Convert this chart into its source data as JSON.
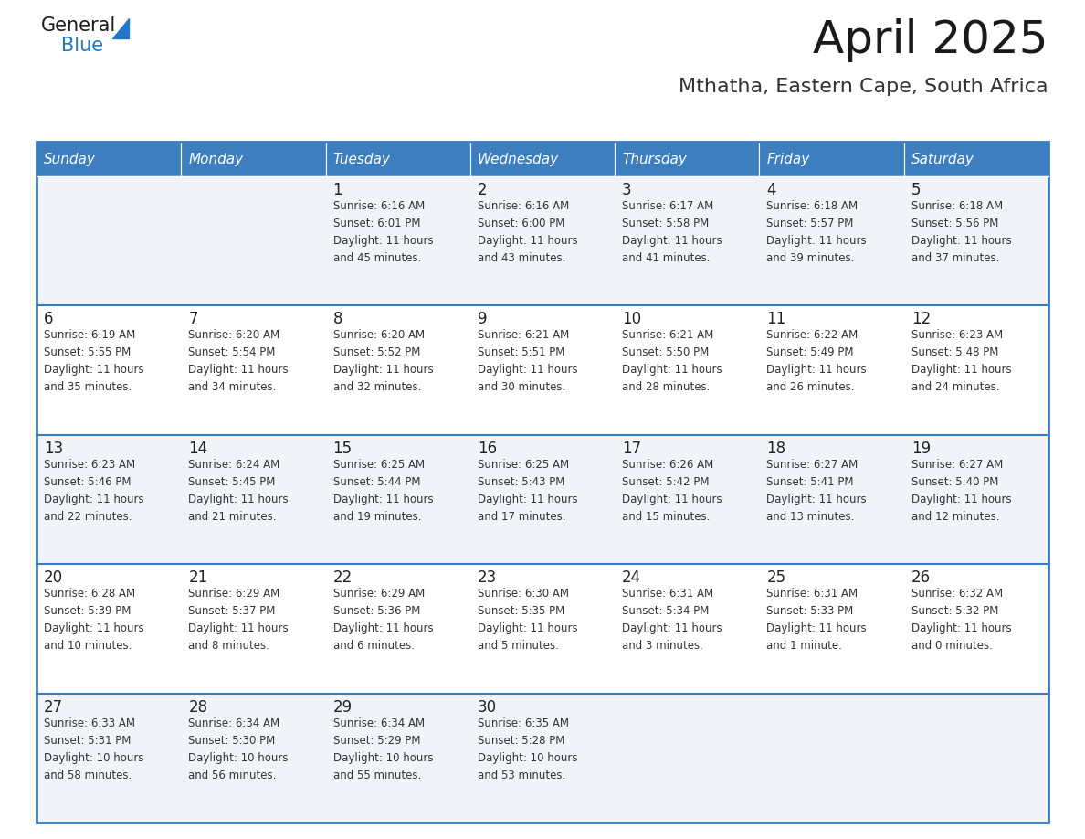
{
  "title": "April 2025",
  "subtitle": "Mthatha, Eastern Cape, South Africa",
  "days_of_week": [
    "Sunday",
    "Monday",
    "Tuesday",
    "Wednesday",
    "Thursday",
    "Friday",
    "Saturday"
  ],
  "header_bg": "#3d7ebf",
  "header_text": "#ffffff",
  "row_bg_even": "#f0f4f8",
  "row_bg_odd": "#ffffff",
  "border_color": "#3a7abf",
  "title_color": "#1a1a1a",
  "subtitle_color": "#333333",
  "cell_text_color": "#333333",
  "day_num_color": "#222222",
  "calendar": [
    [
      {
        "day": null,
        "sunrise": null,
        "sunset": null,
        "daylight": null
      },
      {
        "day": null,
        "sunrise": null,
        "sunset": null,
        "daylight": null
      },
      {
        "day": 1,
        "sunrise": "Sunrise: 6:16 AM",
        "sunset": "Sunset: 6:01 PM",
        "daylight": "Daylight: 11 hours\nand 45 minutes."
      },
      {
        "day": 2,
        "sunrise": "Sunrise: 6:16 AM",
        "sunset": "Sunset: 6:00 PM",
        "daylight": "Daylight: 11 hours\nand 43 minutes."
      },
      {
        "day": 3,
        "sunrise": "Sunrise: 6:17 AM",
        "sunset": "Sunset: 5:58 PM",
        "daylight": "Daylight: 11 hours\nand 41 minutes."
      },
      {
        "day": 4,
        "sunrise": "Sunrise: 6:18 AM",
        "sunset": "Sunset: 5:57 PM",
        "daylight": "Daylight: 11 hours\nand 39 minutes."
      },
      {
        "day": 5,
        "sunrise": "Sunrise: 6:18 AM",
        "sunset": "Sunset: 5:56 PM",
        "daylight": "Daylight: 11 hours\nand 37 minutes."
      }
    ],
    [
      {
        "day": 6,
        "sunrise": "Sunrise: 6:19 AM",
        "sunset": "Sunset: 5:55 PM",
        "daylight": "Daylight: 11 hours\nand 35 minutes."
      },
      {
        "day": 7,
        "sunrise": "Sunrise: 6:20 AM",
        "sunset": "Sunset: 5:54 PM",
        "daylight": "Daylight: 11 hours\nand 34 minutes."
      },
      {
        "day": 8,
        "sunrise": "Sunrise: 6:20 AM",
        "sunset": "Sunset: 5:52 PM",
        "daylight": "Daylight: 11 hours\nand 32 minutes."
      },
      {
        "day": 9,
        "sunrise": "Sunrise: 6:21 AM",
        "sunset": "Sunset: 5:51 PM",
        "daylight": "Daylight: 11 hours\nand 30 minutes."
      },
      {
        "day": 10,
        "sunrise": "Sunrise: 6:21 AM",
        "sunset": "Sunset: 5:50 PM",
        "daylight": "Daylight: 11 hours\nand 28 minutes."
      },
      {
        "day": 11,
        "sunrise": "Sunrise: 6:22 AM",
        "sunset": "Sunset: 5:49 PM",
        "daylight": "Daylight: 11 hours\nand 26 minutes."
      },
      {
        "day": 12,
        "sunrise": "Sunrise: 6:23 AM",
        "sunset": "Sunset: 5:48 PM",
        "daylight": "Daylight: 11 hours\nand 24 minutes."
      }
    ],
    [
      {
        "day": 13,
        "sunrise": "Sunrise: 6:23 AM",
        "sunset": "Sunset: 5:46 PM",
        "daylight": "Daylight: 11 hours\nand 22 minutes."
      },
      {
        "day": 14,
        "sunrise": "Sunrise: 6:24 AM",
        "sunset": "Sunset: 5:45 PM",
        "daylight": "Daylight: 11 hours\nand 21 minutes."
      },
      {
        "day": 15,
        "sunrise": "Sunrise: 6:25 AM",
        "sunset": "Sunset: 5:44 PM",
        "daylight": "Daylight: 11 hours\nand 19 minutes."
      },
      {
        "day": 16,
        "sunrise": "Sunrise: 6:25 AM",
        "sunset": "Sunset: 5:43 PM",
        "daylight": "Daylight: 11 hours\nand 17 minutes."
      },
      {
        "day": 17,
        "sunrise": "Sunrise: 6:26 AM",
        "sunset": "Sunset: 5:42 PM",
        "daylight": "Daylight: 11 hours\nand 15 minutes."
      },
      {
        "day": 18,
        "sunrise": "Sunrise: 6:27 AM",
        "sunset": "Sunset: 5:41 PM",
        "daylight": "Daylight: 11 hours\nand 13 minutes."
      },
      {
        "day": 19,
        "sunrise": "Sunrise: 6:27 AM",
        "sunset": "Sunset: 5:40 PM",
        "daylight": "Daylight: 11 hours\nand 12 minutes."
      }
    ],
    [
      {
        "day": 20,
        "sunrise": "Sunrise: 6:28 AM",
        "sunset": "Sunset: 5:39 PM",
        "daylight": "Daylight: 11 hours\nand 10 minutes."
      },
      {
        "day": 21,
        "sunrise": "Sunrise: 6:29 AM",
        "sunset": "Sunset: 5:37 PM",
        "daylight": "Daylight: 11 hours\nand 8 minutes."
      },
      {
        "day": 22,
        "sunrise": "Sunrise: 6:29 AM",
        "sunset": "Sunset: 5:36 PM",
        "daylight": "Daylight: 11 hours\nand 6 minutes."
      },
      {
        "day": 23,
        "sunrise": "Sunrise: 6:30 AM",
        "sunset": "Sunset: 5:35 PM",
        "daylight": "Daylight: 11 hours\nand 5 minutes."
      },
      {
        "day": 24,
        "sunrise": "Sunrise: 6:31 AM",
        "sunset": "Sunset: 5:34 PM",
        "daylight": "Daylight: 11 hours\nand 3 minutes."
      },
      {
        "day": 25,
        "sunrise": "Sunrise: 6:31 AM",
        "sunset": "Sunset: 5:33 PM",
        "daylight": "Daylight: 11 hours\nand 1 minute."
      },
      {
        "day": 26,
        "sunrise": "Sunrise: 6:32 AM",
        "sunset": "Sunset: 5:32 PM",
        "daylight": "Daylight: 11 hours\nand 0 minutes."
      }
    ],
    [
      {
        "day": 27,
        "sunrise": "Sunrise: 6:33 AM",
        "sunset": "Sunset: 5:31 PM",
        "daylight": "Daylight: 10 hours\nand 58 minutes."
      },
      {
        "day": 28,
        "sunrise": "Sunrise: 6:34 AM",
        "sunset": "Sunset: 5:30 PM",
        "daylight": "Daylight: 10 hours\nand 56 minutes."
      },
      {
        "day": 29,
        "sunrise": "Sunrise: 6:34 AM",
        "sunset": "Sunset: 5:29 PM",
        "daylight": "Daylight: 10 hours\nand 55 minutes."
      },
      {
        "day": 30,
        "sunrise": "Sunrise: 6:35 AM",
        "sunset": "Sunset: 5:28 PM",
        "daylight": "Daylight: 10 hours\nand 53 minutes."
      },
      {
        "day": null,
        "sunrise": null,
        "sunset": null,
        "daylight": null
      },
      {
        "day": null,
        "sunrise": null,
        "sunset": null,
        "daylight": null
      },
      {
        "day": null,
        "sunrise": null,
        "sunset": null,
        "daylight": null
      }
    ]
  ]
}
